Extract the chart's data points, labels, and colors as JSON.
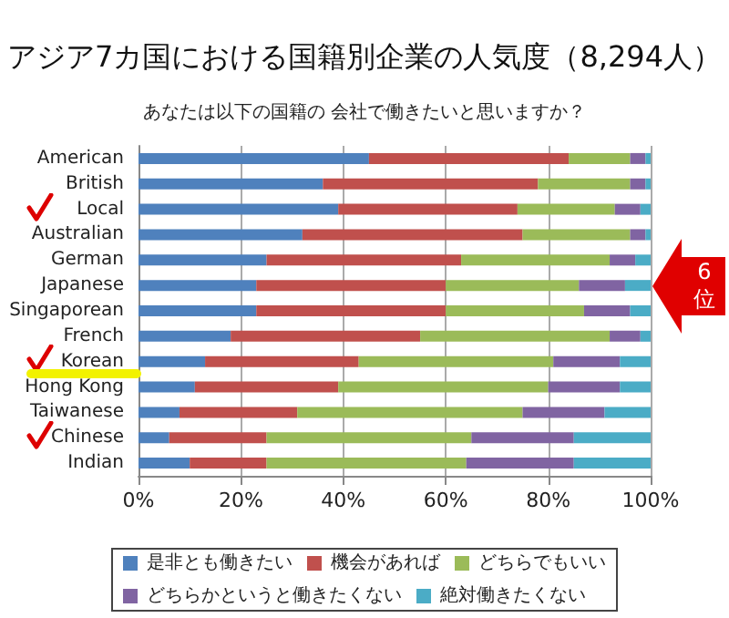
{
  "chart_data": {
    "type": "bar",
    "orientation": "horizontal",
    "stacked": true,
    "title": "アジア7カ国における国籍別企業の人気度（8,294人）",
    "subtitle": "あなたは以下の国籍の 会社で働きたいと思いますか？",
    "categories": [
      "American",
      "British",
      "Local",
      "Australian",
      "German",
      "Japanese",
      "Singaporean",
      "French",
      "Korean",
      "Hong Kong",
      "Taiwanese",
      "Chinese",
      "Indian"
    ],
    "series": [
      {
        "name": "是非とも働きたい",
        "color": "#4f81bd",
        "values": [
          45,
          36,
          39,
          32,
          25,
          23,
          23,
          18,
          13,
          11,
          8,
          6,
          10
        ]
      },
      {
        "name": "機会があれば",
        "color": "#c0504d",
        "values": [
          39,
          42,
          35,
          43,
          38,
          37,
          37,
          37,
          30,
          28,
          23,
          19,
          15
        ]
      },
      {
        "name": "どちらでもいい",
        "color": "#9bbb59",
        "values": [
          12,
          18,
          19,
          21,
          29,
          26,
          27,
          37,
          38,
          41,
          44,
          40,
          39
        ]
      },
      {
        "name": "どちらかというと働きたくない",
        "color": "#8064a2",
        "values": [
          3,
          3,
          5,
          3,
          5,
          9,
          9,
          6,
          13,
          14,
          16,
          20,
          21
        ]
      },
      {
        "name": "絶対働きたくない",
        "color": "#4bacc6",
        "values": [
          1,
          1,
          2,
          1,
          3,
          5,
          4,
          2,
          6,
          6,
          9,
          15,
          15
        ]
      }
    ],
    "xlim": [
      0,
      100
    ],
    "xticks": [
      {
        "value": 0,
        "label": "0%"
      },
      {
        "value": 20,
        "label": "20%"
      },
      {
        "value": 40,
        "label": "40%"
      },
      {
        "value": 60,
        "label": "60%"
      },
      {
        "value": 80,
        "label": "80%"
      },
      {
        "value": 100,
        "label": "100%"
      }
    ],
    "grid": "x",
    "legend": "bottom",
    "annotations": [
      "6位"
    ]
  }
}
